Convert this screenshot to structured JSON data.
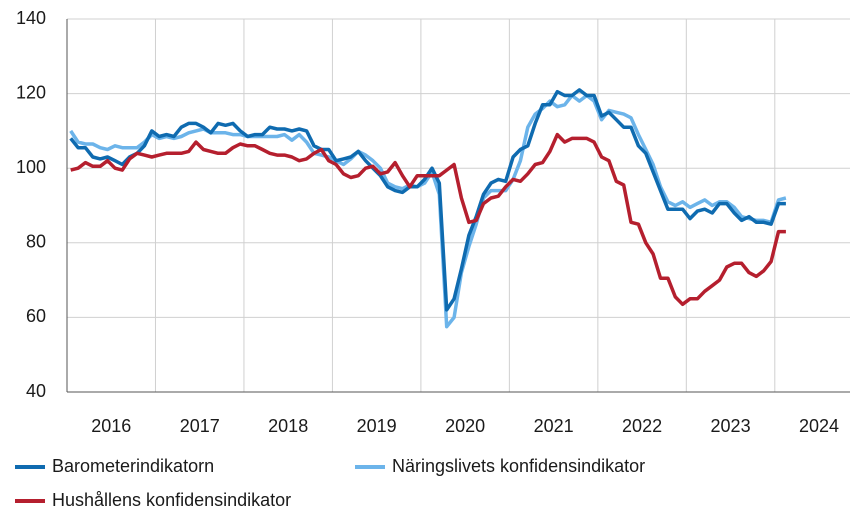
{
  "chart_data": {
    "type": "line",
    "x": [
      2016.042,
      2016.125,
      2016.208,
      2016.292,
      2016.375,
      2016.458,
      2016.542,
      2016.625,
      2016.708,
      2016.792,
      2016.875,
      2016.958,
      2017.042,
      2017.125,
      2017.208,
      2017.292,
      2017.375,
      2017.458,
      2017.542,
      2017.625,
      2017.708,
      2017.792,
      2017.875,
      2017.958,
      2018.042,
      2018.125,
      2018.208,
      2018.292,
      2018.375,
      2018.458,
      2018.542,
      2018.625,
      2018.708,
      2018.792,
      2018.875,
      2018.958,
      2019.042,
      2019.125,
      2019.208,
      2019.292,
      2019.375,
      2019.458,
      2019.542,
      2019.625,
      2019.708,
      2019.792,
      2019.875,
      2019.958,
      2020.042,
      2020.125,
      2020.208,
      2020.292,
      2020.375,
      2020.458,
      2020.542,
      2020.625,
      2020.708,
      2020.792,
      2020.875,
      2020.958,
      2021.042,
      2021.125,
      2021.208,
      2021.292,
      2021.375,
      2021.458,
      2021.542,
      2021.625,
      2021.708,
      2021.792,
      2021.875,
      2021.958,
      2022.042,
      2022.125,
      2022.208,
      2022.292,
      2022.375,
      2022.458,
      2022.542,
      2022.625,
      2022.708,
      2022.792,
      2022.875,
      2022.958,
      2023.042,
      2023.125,
      2023.208,
      2023.292,
      2023.375,
      2023.458,
      2023.542,
      2023.625,
      2023.708,
      2023.792,
      2023.875,
      2023.958,
      2024.042,
      2024.125
    ],
    "xlim": [
      2016,
      2024.85
    ],
    "xticks": [
      {
        "value": 2016.5,
        "label": "2016"
      },
      {
        "value": 2017.5,
        "label": "2017"
      },
      {
        "value": 2018.5,
        "label": "2018"
      },
      {
        "value": 2019.5,
        "label": "2019"
      },
      {
        "value": 2020.5,
        "label": "2020"
      },
      {
        "value": 2021.5,
        "label": "2021"
      },
      {
        "value": 2022.5,
        "label": "2022"
      },
      {
        "value": 2023.5,
        "label": "2023"
      },
      {
        "value": 2024.5,
        "label": "2024"
      }
    ],
    "xgrid": [
      2017,
      2018,
      2019,
      2020,
      2021,
      2022,
      2023,
      2024
    ],
    "ylim": [
      40,
      140
    ],
    "yticks": [
      40,
      60,
      80,
      100,
      120,
      140
    ],
    "grid": true,
    "legend": "bottom",
    "series": [
      {
        "name": "Barometerindikatorn",
        "color": "#0f6bb0",
        "values": [
          108,
          105.5,
          105.5,
          103,
          102.5,
          103,
          102,
          101,
          103,
          104,
          106,
          110,
          108.5,
          109,
          108.5,
          111,
          112,
          112,
          111,
          109.5,
          112,
          111.5,
          112,
          110,
          108.5,
          109,
          109,
          111,
          110.5,
          110.5,
          110,
          110.5,
          110,
          106,
          105,
          105,
          102,
          102.5,
          103,
          104.5,
          102,
          100,
          98,
          95,
          94,
          93.5,
          95,
          95,
          97,
          100,
          96,
          62,
          65,
          73,
          82,
          87,
          93,
          96,
          97,
          96.5,
          103,
          105,
          106,
          112,
          117,
          117,
          120.5,
          119.5,
          119.5,
          121,
          119.5,
          119.5,
          114,
          115,
          113,
          111,
          111,
          106,
          104,
          99,
          94,
          89,
          89,
          89,
          86.5,
          88.5,
          89,
          88,
          90.5,
          90.5,
          88,
          86,
          87,
          85.5,
          85.5,
          85,
          90.5,
          90.5
        ]
      },
      {
        "name": "Näringslivets konfidensindikator",
        "color": "#6cb4ea",
        "values": [
          110,
          107,
          106.5,
          106.5,
          105.5,
          105,
          106,
          105.5,
          105.5,
          105.5,
          107,
          109,
          108,
          108.5,
          108,
          108.5,
          109.5,
          110,
          110.5,
          109.5,
          109.5,
          109.5,
          109,
          109,
          108.5,
          108.5,
          108.5,
          108.5,
          108.5,
          109,
          107.5,
          109,
          107,
          104,
          103.5,
          103,
          102,
          101,
          102.5,
          104.5,
          103.5,
          102,
          100,
          96,
          95,
          94.5,
          95.5,
          95,
          96,
          99,
          93,
          57.5,
          60,
          72,
          79,
          85,
          92,
          94,
          94,
          94,
          97,
          102,
          111,
          114.5,
          116,
          118,
          116.5,
          117,
          119.5,
          118,
          119.5,
          118,
          113,
          115.5,
          115,
          114.5,
          113.5,
          109,
          105,
          101,
          95,
          91,
          90,
          91,
          89.5,
          90.5,
          91.5,
          90,
          91,
          91,
          89.5,
          87,
          86.5,
          86,
          86,
          85.5,
          91.5,
          92
        ]
      },
      {
        "name": "Hushållens konfidensindikator",
        "color": "#b51f2e",
        "values": [
          99.5,
          100,
          101.5,
          100.5,
          100.5,
          102,
          100,
          99.5,
          102.5,
          104,
          103.5,
          103,
          103.5,
          104,
          104,
          104,
          104.5,
          107,
          105,
          104.5,
          104,
          104,
          105.5,
          106.5,
          106,
          106,
          105,
          104,
          103.5,
          103.5,
          103,
          102,
          102.5,
          104,
          105,
          102,
          101,
          98.5,
          97.5,
          98,
          100,
          100.5,
          98.5,
          99,
          101.5,
          98,
          95,
          98,
          98,
          98,
          98,
          99.5,
          101,
          92,
          85.5,
          86,
          90.5,
          92,
          92.5,
          95,
          97,
          96.5,
          98.5,
          101,
          101.5,
          104.5,
          109,
          107,
          108,
          108,
          108,
          107,
          103,
          102,
          96.5,
          95.5,
          85.5,
          85,
          80,
          77,
          70.5,
          70.5,
          65.5,
          63.5,
          65,
          65,
          67,
          68.5,
          70,
          73.5,
          74.5,
          74.5,
          72,
          71,
          72.5,
          75,
          83,
          83
        ]
      }
    ]
  }
}
